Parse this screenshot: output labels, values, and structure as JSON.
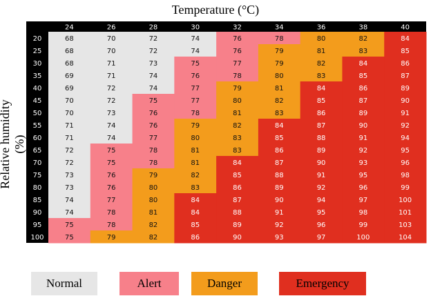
{
  "chart_data": {
    "type": "heatmap",
    "title": "Temperature (°C)",
    "xlabel": "",
    "ylabel": "Relative humidity (%)",
    "x": [
      24,
      26,
      28,
      30,
      32,
      34,
      36,
      38,
      40
    ],
    "y": [
      20,
      25,
      30,
      35,
      40,
      45,
      50,
      55,
      60,
      65,
      70,
      75,
      80,
      85,
      90,
      95,
      100
    ],
    "values": [
      [
        68,
        70,
        72,
        74,
        76,
        78,
        80,
        82,
        84
      ],
      [
        68,
        70,
        72,
        74,
        76,
        79,
        81,
        83,
        85
      ],
      [
        68,
        71,
        73,
        75,
        77,
        79,
        82,
        84,
        86
      ],
      [
        69,
        71,
        74,
        76,
        78,
        80,
        83,
        85,
        87
      ],
      [
        69,
        72,
        74,
        77,
        79,
        81,
        84,
        86,
        89
      ],
      [
        70,
        72,
        75,
        77,
        80,
        82,
        85,
        87,
        90
      ],
      [
        70,
        73,
        76,
        78,
        81,
        83,
        86,
        89,
        91
      ],
      [
        71,
        74,
        76,
        79,
        82,
        84,
        87,
        90,
        92
      ],
      [
        71,
        74,
        77,
        80,
        83,
        85,
        88,
        91,
        94
      ],
      [
        72,
        75,
        78,
        81,
        83,
        86,
        89,
        92,
        95
      ],
      [
        72,
        75,
        78,
        81,
        84,
        87,
        90,
        93,
        96
      ],
      [
        73,
        76,
        79,
        82,
        85,
        88,
        91,
        95,
        98
      ],
      [
        73,
        76,
        80,
        83,
        86,
        89,
        92,
        96,
        99
      ],
      [
        74,
        77,
        80,
        84,
        87,
        90,
        94,
        97,
        100
      ],
      [
        74,
        78,
        81,
        84,
        88,
        91,
        95,
        98,
        101
      ],
      [
        75,
        78,
        82,
        85,
        89,
        92,
        96,
        99,
        103
      ],
      [
        75,
        79,
        82,
        86,
        90,
        93,
        97,
        100,
        104
      ]
    ],
    "levels": [
      [
        0,
        0,
        0,
        0,
        1,
        1,
        2,
        2,
        3
      ],
      [
        0,
        0,
        0,
        0,
        1,
        2,
        2,
        2,
        3
      ],
      [
        0,
        0,
        0,
        1,
        1,
        2,
        2,
        3,
        3
      ],
      [
        0,
        0,
        0,
        1,
        1,
        2,
        2,
        3,
        3
      ],
      [
        0,
        0,
        0,
        1,
        2,
        2,
        3,
        3,
        3
      ],
      [
        0,
        0,
        1,
        1,
        2,
        2,
        3,
        3,
        3
      ],
      [
        0,
        0,
        1,
        1,
        2,
        2,
        3,
        3,
        3
      ],
      [
        0,
        0,
        1,
        2,
        2,
        3,
        3,
        3,
        3
      ],
      [
        0,
        0,
        1,
        2,
        2,
        3,
        3,
        3,
        3
      ],
      [
        0,
        1,
        1,
        2,
        2,
        3,
        3,
        3,
        3
      ],
      [
        0,
        1,
        1,
        2,
        3,
        3,
        3,
        3,
        3
      ],
      [
        0,
        1,
        2,
        2,
        3,
        3,
        3,
        3,
        3
      ],
      [
        0,
        1,
        2,
        2,
        3,
        3,
        3,
        3,
        3
      ],
      [
        0,
        1,
        2,
        3,
        3,
        3,
        3,
        3,
        3
      ],
      [
        0,
        1,
        2,
        3,
        3,
        3,
        3,
        3,
        3
      ],
      [
        1,
        1,
        2,
        3,
        3,
        3,
        3,
        3,
        3
      ],
      [
        1,
        2,
        2,
        3,
        3,
        3,
        3,
        3,
        3
      ]
    ],
    "legend": [
      {
        "label": "Normal",
        "color": "#e6e6e6"
      },
      {
        "label": "Alert",
        "color": "#f7808a"
      },
      {
        "label": "Danger",
        "color": "#f39c1c"
      },
      {
        "label": "Emergency",
        "color": "#e02f1f"
      }
    ],
    "header_color": "#000000"
  }
}
